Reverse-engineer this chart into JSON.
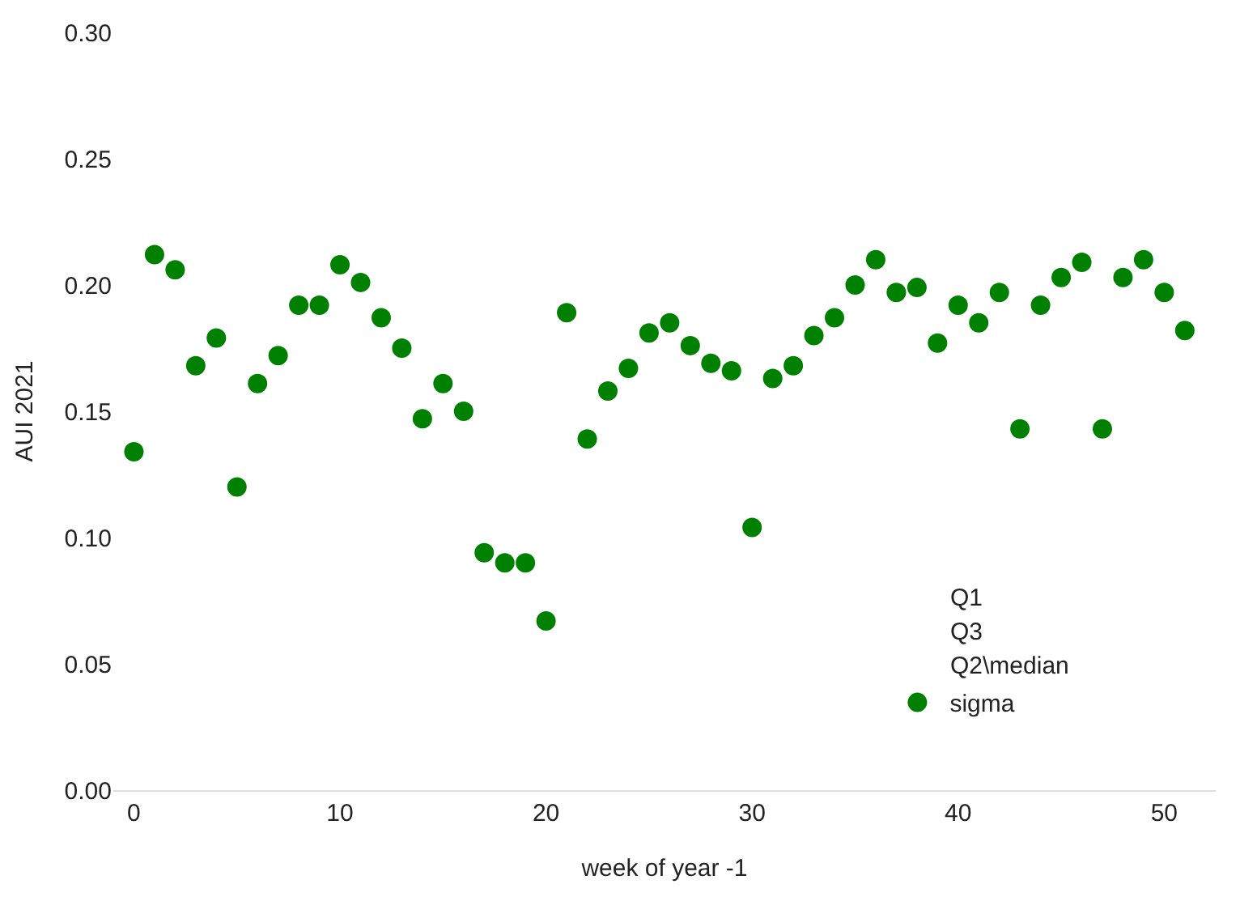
{
  "chart_data": {
    "type": "scatter",
    "xlabel": "week of year -1",
    "ylabel": "AUI 2021",
    "x": [
      0,
      1,
      2,
      3,
      4,
      5,
      6,
      7,
      8,
      9,
      10,
      11,
      12,
      13,
      14,
      15,
      16,
      17,
      18,
      19,
      20,
      21,
      22,
      23,
      24,
      25,
      26,
      27,
      28,
      29,
      30,
      31,
      32,
      33,
      34,
      35,
      36,
      37,
      38,
      39,
      40,
      41,
      42,
      43,
      44,
      45,
      46,
      47,
      48,
      49,
      50,
      51
    ],
    "series": [
      {
        "name": "sigma",
        "color": "#008000",
        "values": [
          0.134,
          0.212,
          0.206,
          0.168,
          0.179,
          0.12,
          0.161,
          0.172,
          0.192,
          0.192,
          0.208,
          0.201,
          0.187,
          0.175,
          0.147,
          0.161,
          0.15,
          0.094,
          0.09,
          0.09,
          0.067,
          0.189,
          0.139,
          0.158,
          0.167,
          0.181,
          0.185,
          0.176,
          0.169,
          0.166,
          0.104,
          0.163,
          0.168,
          0.18,
          0.187,
          0.2,
          0.21,
          0.197,
          0.199,
          0.177,
          0.192,
          0.185,
          0.197,
          0.143,
          0.192,
          0.203,
          0.209,
          0.143,
          0.203,
          0.21,
          0.197,
          0.182
        ]
      }
    ],
    "annotations": [
      "Q1",
      "Q3",
      "Q2\\median"
    ],
    "xlim": [
      -1,
      52.5
    ],
    "xticks": [
      0,
      10,
      20,
      30,
      40,
      50
    ],
    "ylim": [
      0,
      0.3
    ],
    "yticks": [
      {
        "value": 0,
        "label": "0.00"
      },
      {
        "value": 0.05,
        "label": "0.05"
      },
      {
        "value": 0.1,
        "label": "0.10"
      },
      {
        "value": 0.15,
        "label": "0.15"
      },
      {
        "value": 0.2,
        "label": "0.20"
      },
      {
        "value": 0.25,
        "label": "0.25"
      },
      {
        "value": 0.3,
        "label": "0.30"
      }
    ],
    "legend": "bottom right",
    "marker": "circle"
  }
}
